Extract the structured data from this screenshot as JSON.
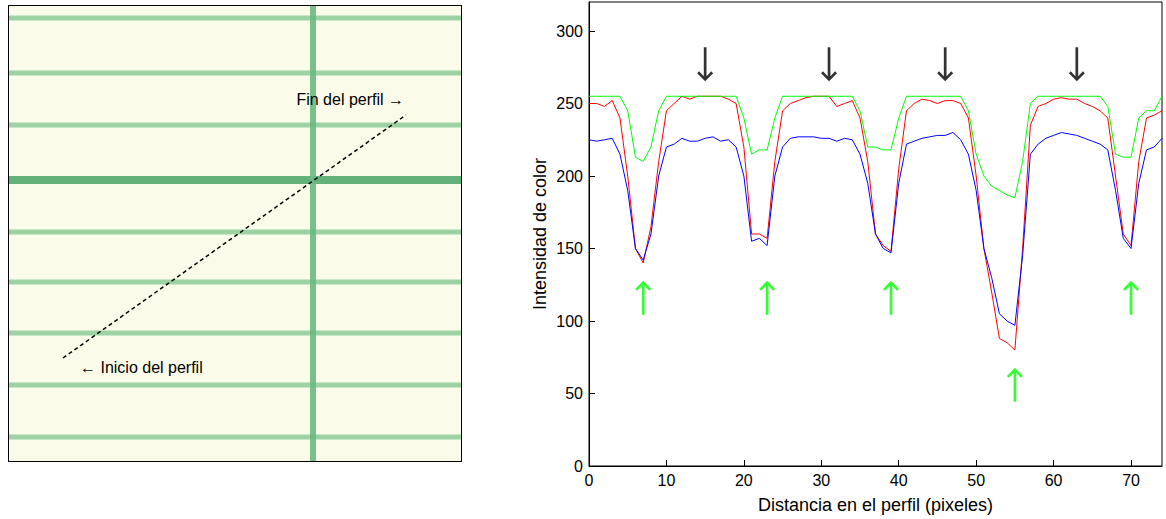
{
  "image": {
    "start_label": "← Inicio del perfil",
    "end_label": "Fin del perfil →"
  },
  "chart_data": {
    "type": "line",
    "x_label": "Distancia en el perfil (pixeles)",
    "y_label": "Intensidad de color",
    "x": [
      0,
      1,
      2,
      3,
      4,
      5,
      6,
      7,
      8,
      9,
      10,
      11,
      12,
      13,
      14,
      15,
      16,
      17,
      18,
      19,
      20,
      21,
      22,
      23,
      24,
      25,
      26,
      27,
      28,
      29,
      30,
      31,
      32,
      33,
      34,
      35,
      36,
      37,
      38,
      39,
      40,
      41,
      42,
      43,
      44,
      45,
      46,
      47,
      48,
      49,
      50,
      51,
      52,
      53,
      54,
      55,
      56,
      57,
      58,
      59,
      60,
      61,
      62,
      63,
      64,
      65,
      66,
      67,
      68,
      69,
      70,
      71,
      72,
      73,
      74
    ],
    "series": [
      {
        "color": "#ff0000",
        "values": [
          250,
          250,
          248,
          252,
          240,
          200,
          150,
          140,
          165,
          210,
          245,
          250,
          255,
          253,
          255,
          255,
          255,
          255,
          253,
          250,
          220,
          160,
          160,
          157,
          210,
          245,
          250,
          252,
          254,
          255,
          255,
          255,
          248,
          250,
          252,
          240,
          210,
          160,
          152,
          148,
          205,
          245,
          250,
          253,
          252,
          250,
          252,
          252,
          250,
          240,
          200,
          150,
          120,
          88,
          85,
          80,
          150,
          235,
          248,
          250,
          253,
          254,
          253,
          253,
          250,
          248,
          245,
          240,
          200,
          160,
          152,
          210,
          240,
          242,
          245
        ]
      },
      {
        "color": "#0000ff",
        "values": [
          225,
          224,
          225,
          226,
          215,
          190,
          150,
          142,
          160,
          200,
          220,
          222,
          226,
          224,
          224,
          226,
          227,
          224,
          225,
          220,
          200,
          155,
          157,
          152,
          200,
          220,
          226,
          227,
          227,
          227,
          226,
          226,
          224,
          226,
          225,
          215,
          195,
          160,
          150,
          147,
          195,
          222,
          224,
          226,
          227,
          228,
          228,
          230,
          225,
          215,
          190,
          150,
          130,
          105,
          100,
          97,
          145,
          215,
          222,
          226,
          228,
          230,
          229,
          228,
          226,
          224,
          222,
          218,
          190,
          157,
          150,
          195,
          218,
          220,
          226
        ]
      },
      {
        "color": "#00ff00",
        "values": [
          255,
          255,
          255,
          255,
          255,
          245,
          213,
          210,
          220,
          245,
          255,
          255,
          255,
          255,
          255,
          255,
          255,
          255,
          255,
          255,
          240,
          215,
          218,
          218,
          240,
          255,
          255,
          255,
          255,
          255,
          255,
          255,
          255,
          255,
          255,
          245,
          220,
          220,
          218,
          218,
          240,
          255,
          255,
          255,
          255,
          255,
          255,
          255,
          255,
          245,
          215,
          200,
          193,
          190,
          187,
          185,
          210,
          250,
          255,
          255,
          255,
          255,
          255,
          255,
          255,
          255,
          255,
          248,
          215,
          213,
          213,
          240,
          245,
          245,
          255
        ]
      }
    ],
    "arrows": [
      {
        "direction": "down",
        "color": "#000000",
        "x": [
          15,
          31,
          46,
          63
        ],
        "y": [
          277,
          277,
          277,
          277
        ]
      },
      {
        "direction": "up",
        "color": "#00ff00",
        "x": [
          7,
          23,
          39,
          55,
          70
        ],
        "y": [
          116,
          116,
          116,
          56,
          116
        ]
      }
    ],
    "xlim": [
      0,
      74
    ],
    "xticks": [
      0,
      10,
      20,
      30,
      40,
      50,
      60,
      70
    ],
    "ylim": [
      0,
      320
    ],
    "yticks": [
      0,
      50,
      100,
      150,
      200,
      250,
      300
    ],
    "grid": false
  }
}
